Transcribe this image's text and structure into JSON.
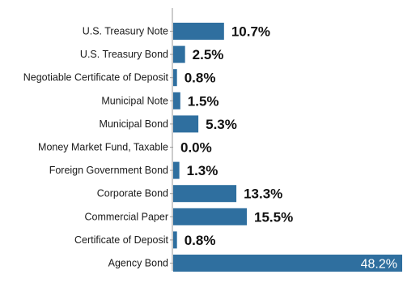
{
  "chart_data": {
    "type": "bar",
    "orientation": "horizontal",
    "title": "",
    "xlabel": "",
    "ylabel": "",
    "categories": [
      "U.S. Treasury Note",
      "U.S. Treasury Bond",
      "Negotiable Certificate of Deposit",
      "Municipal Note",
      "Municipal Bond",
      "Money Market Fund, Taxable",
      "Foreign Government Bond",
      "Corporate Bond",
      "Commercial Paper",
      "Certificate of Deposit",
      "Agency Bond"
    ],
    "values": [
      10.7,
      2.5,
      0.8,
      1.5,
      5.3,
      0.0,
      1.3,
      13.3,
      15.5,
      0.8,
      48.2
    ],
    "value_labels": [
      "10.7%",
      "2.5%",
      "0.8%",
      "1.5%",
      "5.3%",
      "0.0%",
      "1.3%",
      "13.3%",
      "15.5%",
      "0.8%",
      "48.2%"
    ],
    "xlim": [
      0,
      50
    ],
    "grid": false,
    "legend": "none",
    "bar_color": "#2f6f9f"
  }
}
